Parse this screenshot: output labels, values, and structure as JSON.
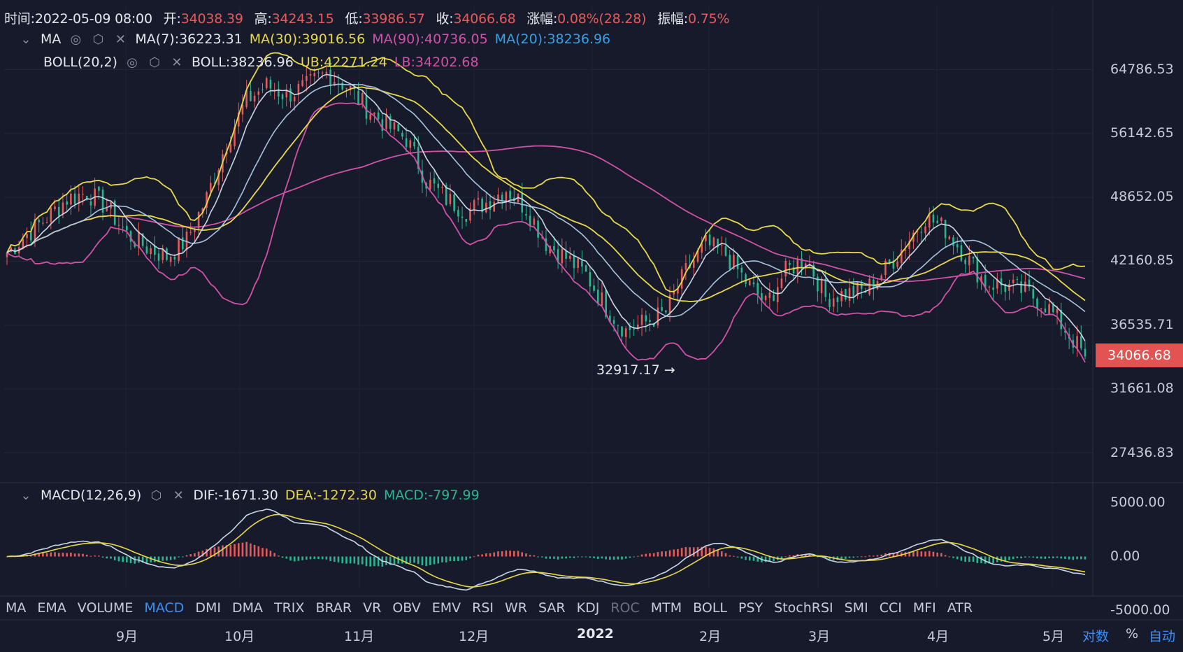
{
  "ohlc": {
    "time_label": "时间:",
    "time": "2022-05-09 08:00",
    "open_label": "开:",
    "open": "34038.39",
    "high_label": "高:",
    "high": "34243.15",
    "low_label": "低:",
    "low": "33986.57",
    "close_label": "收:",
    "close": "34066.68",
    "change_label": "涨幅:",
    "change": "0.08%(28.28)",
    "amp_label": "振幅:",
    "amp": "0.75%"
  },
  "ma_row": {
    "name": "MA",
    "ma7": "MA(7):36223.31",
    "ma30": "MA(30):39016.56",
    "ma90": "MA(90):40736.05",
    "ma20": "MA(20):38236.96"
  },
  "boll_row": {
    "name": "BOLL(20,2)",
    "boll": "BOLL:38236.96",
    "ub": "UB:42271.24",
    "lb": "LB:34202.68"
  },
  "macd_row": {
    "name": "MACD(12,26,9)",
    "dif": "DIF:-1671.30",
    "dea": "DEA:-1272.30",
    "macd": "MACD:-797.99"
  },
  "tabs": [
    "MA",
    "EMA",
    "VOLUME",
    "MACD",
    "DMI",
    "DMA",
    "TRIX",
    "BRAR",
    "VR",
    "OBV",
    "EMV",
    "RSI",
    "WR",
    "SAR",
    "KDJ",
    "ROC",
    "MTM",
    "BOLL",
    "PSY",
    "StochRSI",
    "SMI",
    "CCI",
    "MFI",
    "ATR"
  ],
  "active_tab": "MACD",
  "disabled_tab": "ROC",
  "x_labels": [
    "9月",
    "10月",
    "11月",
    "12月",
    "2022",
    "2月",
    "3月",
    "4月",
    "5月"
  ],
  "controls": {
    "log": "对数",
    "percent": "%",
    "auto": "自动"
  },
  "current_price": "34066.68",
  "colors": {
    "up": "#e45b5b",
    "down": "#2bb58f",
    "ma7": "#c9d6e6",
    "ma30": "#e8d94a",
    "ma90": "#d052a6",
    "ma20": "#3aa0e0",
    "boll": "#e8d94a",
    "bg": "#161a2b",
    "accent": "#3d8ff5"
  },
  "chart_data": [
    {
      "type": "candlestick",
      "title": "",
      "y_scale": "log",
      "y_ticks": [
        "64786.53",
        "56142.65",
        "48652.05",
        "42160.85",
        "36535.71",
        "31661.08",
        "27436.83"
      ],
      "x_ticks": [
        "9月",
        "10月",
        "11月",
        "12月",
        "2022",
        "2月",
        "3月",
        "4月",
        "5月"
      ],
      "annotation": {
        "text": "32917.17 →",
        "value": 32917.17
      },
      "close_series": [
        43000,
        44800,
        46500,
        48500,
        49200,
        47600,
        44800,
        43500,
        42600,
        44200,
        48600,
        55000,
        60500,
        62500,
        61200,
        62400,
        64300,
        62500,
        59500,
        57200,
        55500,
        50500,
        48500,
        47200,
        48100,
        49600,
        47500,
        44000,
        42500,
        40900,
        38000,
        36100,
        36800,
        37600,
        41200,
        43800,
        42800,
        40300,
        38300,
        41200,
        42600,
        38900,
        39200,
        39500,
        41400,
        43800,
        46600,
        45300,
        42700,
        40200,
        39900,
        39400,
        38300,
        36200,
        34066.68
      ],
      "series": [
        {
          "name": "MA(7)",
          "last": 36223.31
        },
        {
          "name": "MA(30)",
          "last": 39016.56
        },
        {
          "name": "MA(90)",
          "last": 40736.05
        },
        {
          "name": "MA(20)",
          "last": 38236.96
        },
        {
          "name": "BOLL",
          "last": 38236.96
        },
        {
          "name": "UB",
          "last": 42271.24
        },
        {
          "name": "LB",
          "last": 34202.68
        }
      ]
    },
    {
      "type": "bar",
      "title": "MACD(12,26,9)",
      "y_ticks": [
        "5000.00",
        "0.00",
        "-5000.00"
      ],
      "ylim": [
        -5000,
        5000
      ],
      "series": [
        {
          "name": "DIF",
          "last": -1671.3
        },
        {
          "name": "DEA",
          "last": -1272.3
        },
        {
          "name": "MACD",
          "last": -797.99
        }
      ]
    }
  ]
}
